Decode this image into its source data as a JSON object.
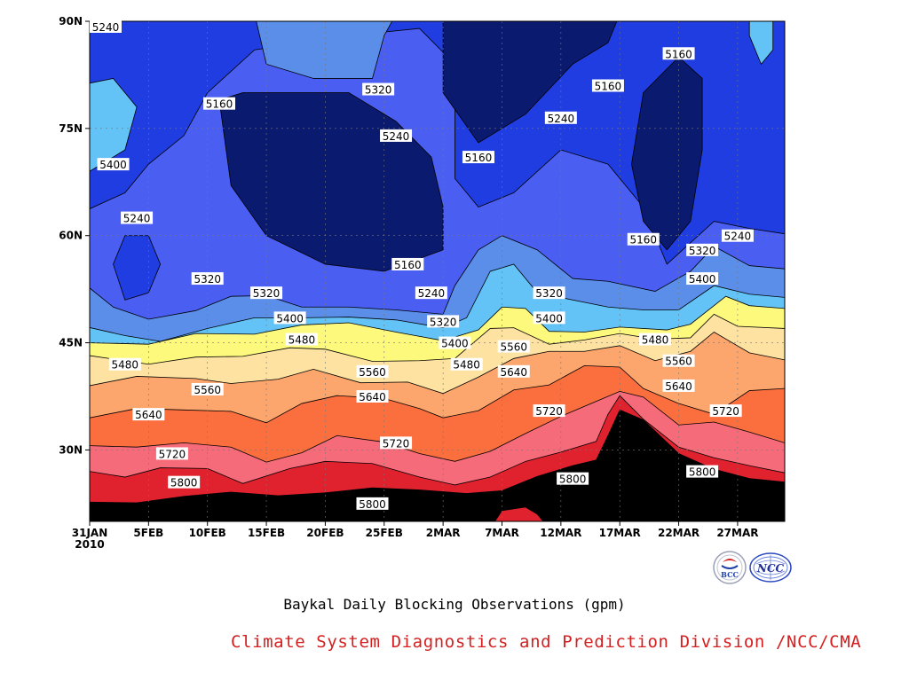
{
  "chart_data": {
    "type": "contour",
    "title": "Baykal Daily Blocking Observations (gpm)",
    "x_ticks": [
      "31JAN",
      "5FEB",
      "10FEB",
      "15FEB",
      "20FEB",
      "25FEB",
      "2MAR",
      "7MAR",
      "12MAR",
      "17MAR",
      "22MAR",
      "27MAR"
    ],
    "x_year": "2010",
    "y_ticks": [
      "30N",
      "45N",
      "60N",
      "75N",
      "90N"
    ],
    "xlim_days": [
      0,
      59
    ],
    "ylim_lat": [
      20,
      90
    ],
    "levels": [
      5160,
      5240,
      5320,
      5400,
      5480,
      5560,
      5640,
      5720,
      5800,
      5880
    ],
    "band_colors": [
      "#0a1a6e",
      "#1f3de0",
      "#4a5ef2",
      "#5a8ee8",
      "#63c3f7",
      "#fdf97c",
      "#fde2a1",
      "#fca56c",
      "#fb6f3f",
      "#f56b7a",
      "#e0222f"
    ],
    "contour_labels": [
      {
        "text": "5240",
        "day": 1,
        "lat": 90
      },
      {
        "text": "5400",
        "day": 2,
        "lat": 70
      },
      {
        "text": "5160",
        "day": 11,
        "lat": 78.5
      },
      {
        "text": "5320",
        "day": 24.5,
        "lat": 80.5
      },
      {
        "text": "5240",
        "day": 26,
        "lat": 74
      },
      {
        "text": "5160",
        "day": 33,
        "lat": 71
      },
      {
        "text": "5160",
        "day": 44,
        "lat": 81
      },
      {
        "text": "5240",
        "day": 40,
        "lat": 76.5
      },
      {
        "text": "5160",
        "day": 50,
        "lat": 85.5
      },
      {
        "text": "5240",
        "day": 4,
        "lat": 62.5
      },
      {
        "text": "5320",
        "day": 10,
        "lat": 54
      },
      {
        "text": "5320",
        "day": 15,
        "lat": 52
      },
      {
        "text": "5400",
        "day": 17,
        "lat": 48.5
      },
      {
        "text": "5480",
        "day": 18,
        "lat": 45.5
      },
      {
        "text": "5160",
        "day": 27,
        "lat": 56
      },
      {
        "text": "5240",
        "day": 29,
        "lat": 52
      },
      {
        "text": "5320",
        "day": 30,
        "lat": 48
      },
      {
        "text": "5400",
        "day": 31,
        "lat": 45
      },
      {
        "text": "5480",
        "day": 32,
        "lat": 42
      },
      {
        "text": "5560",
        "day": 36,
        "lat": 44.5
      },
      {
        "text": "5640",
        "day": 36,
        "lat": 41
      },
      {
        "text": "5320",
        "day": 39,
        "lat": 52
      },
      {
        "text": "5400",
        "day": 39,
        "lat": 48.5
      },
      {
        "text": "5160",
        "day": 47,
        "lat": 59.5
      },
      {
        "text": "5320",
        "day": 52,
        "lat": 58
      },
      {
        "text": "5240",
        "day": 55,
        "lat": 60
      },
      {
        "text": "5400",
        "day": 52,
        "lat": 54
      },
      {
        "text": "5480",
        "day": 48,
        "lat": 45.5
      },
      {
        "text": "5560",
        "day": 50,
        "lat": 42.5
      },
      {
        "text": "5640",
        "day": 50,
        "lat": 39
      },
      {
        "text": "5720",
        "day": 54,
        "lat": 35.5
      },
      {
        "text": "5480",
        "day": 3,
        "lat": 42
      },
      {
        "text": "5560",
        "day": 10,
        "lat": 38.5
      },
      {
        "text": "5640",
        "day": 5,
        "lat": 35
      },
      {
        "text": "5720",
        "day": 7,
        "lat": 29.5
      },
      {
        "text": "5800",
        "day": 8,
        "lat": 25.5
      },
      {
        "text": "5560",
        "day": 24,
        "lat": 41
      },
      {
        "text": "5640",
        "day": 24,
        "lat": 37.5
      },
      {
        "text": "5720",
        "day": 26,
        "lat": 31
      },
      {
        "text": "5800",
        "day": 24,
        "lat": 22.5
      },
      {
        "text": "5720",
        "day": 39,
        "lat": 35.5
      },
      {
        "text": "5800",
        "day": 41,
        "lat": 26
      },
      {
        "text": "5800",
        "day": 52,
        "lat": 27
      }
    ]
  },
  "caption_main": "Baykal Daily Blocking Observations (gpm)",
  "caption_credit": "Climate System Diagnostics and Prediction Division /NCC/CMA",
  "colors": {
    "credit_text": "#d42020",
    "axis": "#000000",
    "label_box": "#ffffff"
  },
  "logos": {
    "bcc": "BCC",
    "ncc": "NCC"
  }
}
